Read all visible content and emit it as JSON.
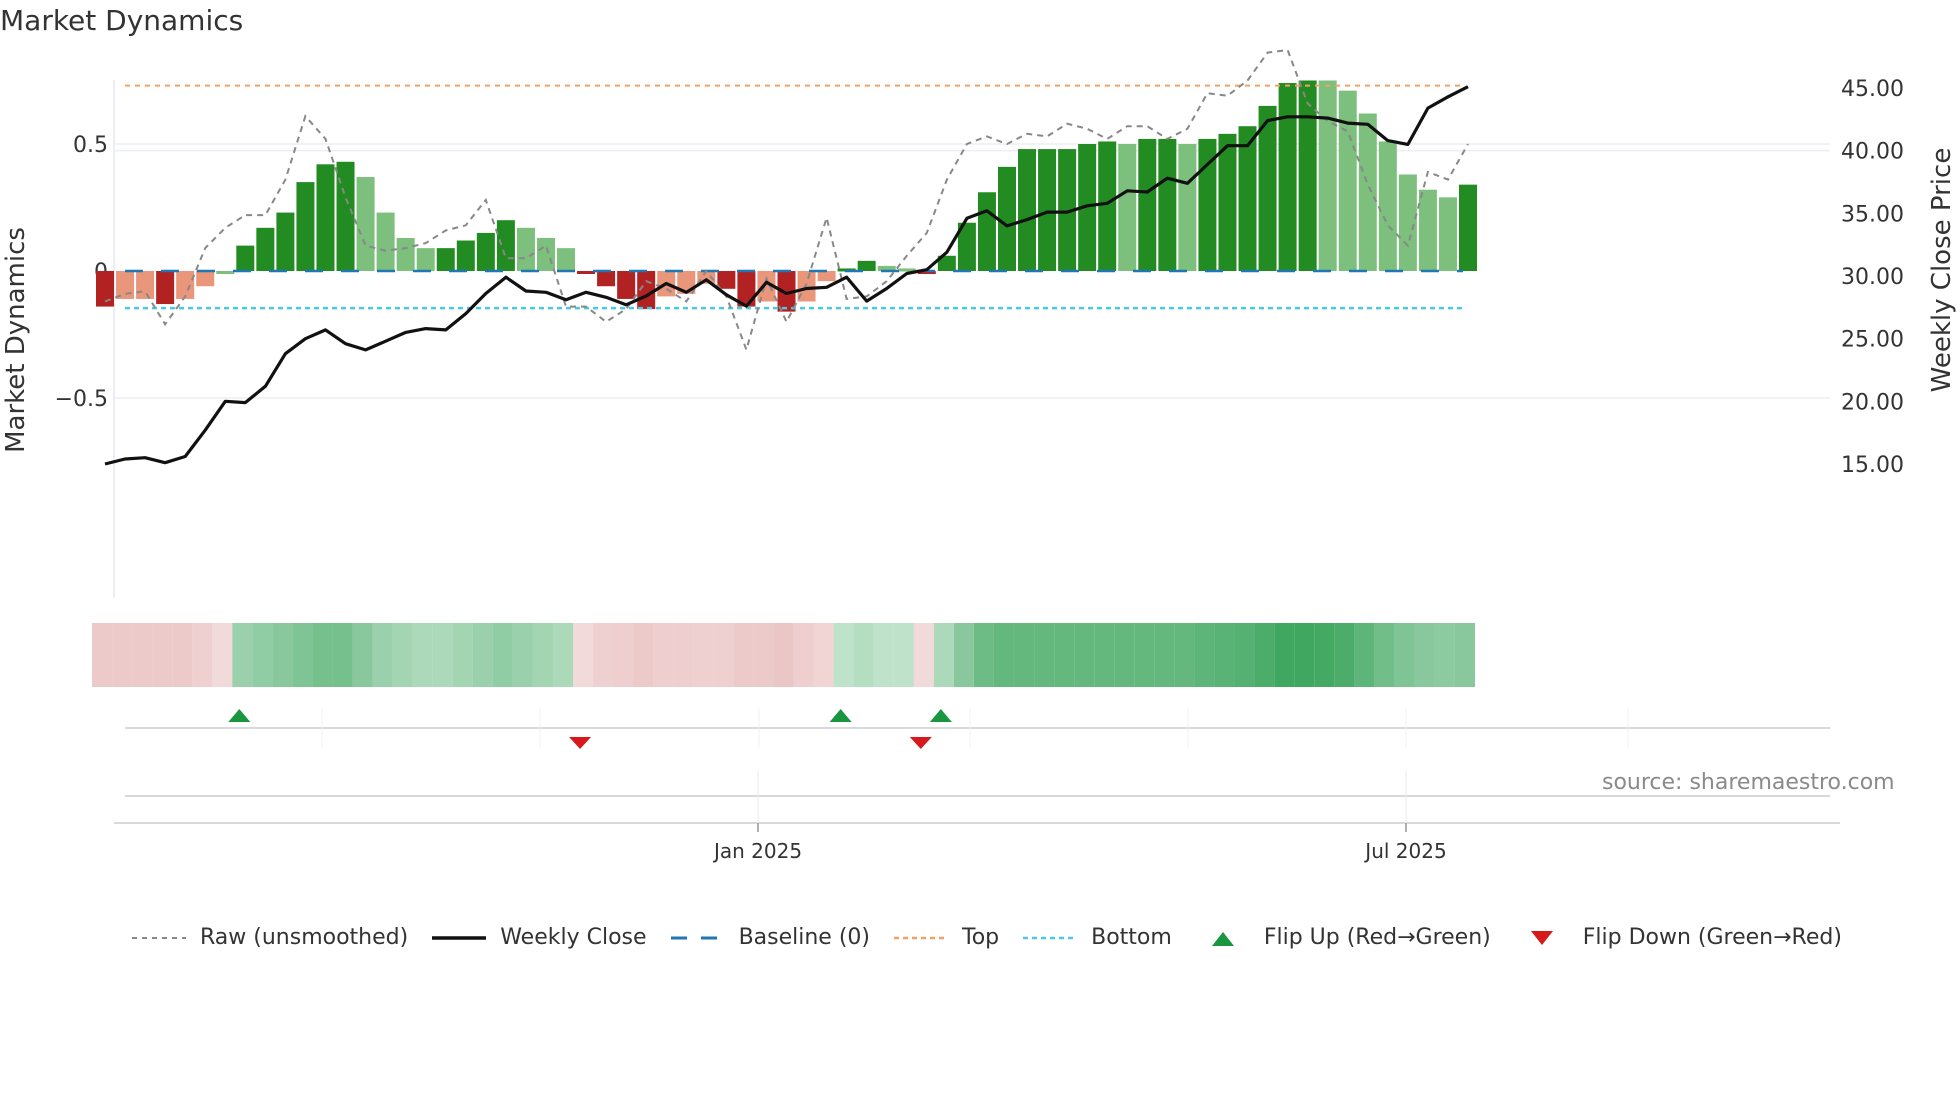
{
  "title": "Market Dynamics",
  "source": "source: sharemaestro.com",
  "axes": {
    "left_label": "Market Dynamics",
    "right_label": "Weekly Close Price",
    "left_ticks": [
      "0.5",
      "0",
      "−0.5"
    ],
    "right_ticks": [
      "45.00",
      "40.00",
      "35.00",
      "30.00",
      "25.00",
      "20.00",
      "15.00"
    ],
    "x_ticks": [
      "Jan 2025",
      "Jul 2025"
    ]
  },
  "legend": [
    {
      "key": "raw",
      "label": "Raw (unsmoothed)"
    },
    {
      "key": "close",
      "label": "Weekly Close"
    },
    {
      "key": "baseline",
      "label": "Baseline (0)"
    },
    {
      "key": "top",
      "label": "Top"
    },
    {
      "key": "bottom",
      "label": "Bottom"
    },
    {
      "key": "flipup",
      "label": "Flip Up (Red→Green)"
    },
    {
      "key": "flipdown",
      "label": "Flip Down (Green→Red)"
    }
  ],
  "colors": {
    "strong_green": "#228b22",
    "weak_green": "#7dbf7d",
    "strong_red": "#b22222",
    "weak_red": "#e9967a",
    "top_line": "#f4a261",
    "bottom_line": "#48cae4",
    "baseline": "#1f77b4",
    "raw_line": "#888888",
    "close_line": "#111111",
    "flip_up": "#1a9641",
    "flip_down": "#d7191c"
  },
  "chart_data": {
    "type": "bar",
    "title": "Market Dynamics",
    "xlabel": "",
    "ylabel": "Market Dynamics",
    "y2label": "Weekly Close Price",
    "ylim": [
      -0.82,
      0.82
    ],
    "y2lim": [
      13.8,
      46.9
    ],
    "top_level": 0.73,
    "bottom_level": -0.15,
    "baseline": 0,
    "x_tick_labels": [
      "Jan 2025",
      "Jul 2025"
    ],
    "n_weeks": 69,
    "series": [
      {
        "name": "Market Dynamics (smoothed)",
        "type": "bar",
        "values": [
          -0.14,
          -0.11,
          -0.11,
          -0.13,
          -0.11,
          -0.06,
          0,
          0.1,
          0.17,
          0.23,
          0.35,
          0.42,
          0.43,
          0.37,
          0.23,
          0.13,
          0.09,
          0.09,
          0.12,
          0.15,
          0.2,
          0.17,
          0.13,
          0.09,
          -0.01,
          -0.06,
          -0.11,
          -0.15,
          -0.1,
          -0.09,
          -0.05,
          -0.07,
          -0.14,
          -0.12,
          -0.16,
          -0.12,
          -0.04,
          0.01,
          0.04,
          0.02,
          0.01,
          -0.01,
          0.06,
          0.19,
          0.31,
          0.41,
          0.48,
          0.48,
          0.48,
          0.5,
          0.51,
          0.5,
          0.52,
          0.52,
          0.5,
          0.52,
          0.54,
          0.57,
          0.65,
          0.74,
          0.75,
          0.75,
          0.71,
          0.62,
          0.51,
          0.38,
          0.32,
          0.29,
          0.34
        ],
        "strength": [
          "s",
          "w",
          "w",
          "s",
          "w",
          "w",
          "w",
          "s",
          "s",
          "s",
          "s",
          "s",
          "s",
          "w",
          "w",
          "w",
          "w",
          "s",
          "s",
          "s",
          "s",
          "w",
          "w",
          "w",
          "s",
          "s",
          "s",
          "s",
          "w",
          "w",
          "w",
          "s",
          "s",
          "w",
          "s",
          "w",
          "w",
          "s",
          "s",
          "w",
          "w",
          "s",
          "s",
          "s",
          "s",
          "s",
          "s",
          "s",
          "s",
          "s",
          "s",
          "w",
          "s",
          "s",
          "w",
          "s",
          "s",
          "s",
          "s",
          "s",
          "s",
          "w",
          "w",
          "w",
          "w",
          "w",
          "w",
          "w",
          "s"
        ]
      },
      {
        "name": "Raw (unsmoothed)",
        "type": "line",
        "values": [
          -0.12,
          -0.09,
          -0.08,
          -0.21,
          -0.1,
          0.09,
          0.17,
          0.22,
          0.22,
          0.36,
          0.61,
          0.52,
          0.29,
          0.1,
          0.08,
          0.09,
          0.11,
          0.16,
          0.18,
          0.28,
          0.05,
          0.05,
          0.1,
          -0.14,
          -0.14,
          -0.2,
          -0.15,
          -0.04,
          -0.07,
          -0.12,
          0,
          -0.1,
          -0.31,
          -0.03,
          -0.2,
          -0.05,
          0.21,
          -0.11,
          -0.1,
          -0.04,
          0.06,
          0.15,
          0.36,
          0.5,
          0.53,
          0.5,
          0.54,
          0.53,
          0.58,
          0.56,
          0.52,
          0.57,
          0.57,
          0.52,
          0.56,
          0.7,
          0.69,
          0.75,
          0.86,
          0.87,
          0.66,
          0.59,
          0.55,
          0.34,
          0.18,
          0.1,
          0.39,
          0.36,
          0.5
        ]
      },
      {
        "name": "Weekly Close",
        "type": "line",
        "axis": "right",
        "values": [
          15.0,
          15.4,
          15.5,
          15.1,
          15.6,
          17.7,
          20.0,
          19.9,
          21.2,
          23.8,
          25.0,
          25.7,
          24.6,
          24.1,
          24.8,
          25.5,
          25.8,
          25.7,
          27.0,
          28.6,
          29.9,
          28.8,
          28.7,
          28.1,
          28.7,
          28.3,
          27.7,
          28.4,
          29.4,
          28.7,
          29.7,
          28.5,
          27.6,
          29.5,
          28.6,
          29.0,
          29.1,
          29.9,
          28.0,
          29.0,
          30.2,
          30.5,
          31.9,
          34.6,
          35.2,
          34.0,
          34.5,
          35.1,
          35.1,
          35.6,
          35.8,
          36.8,
          36.7,
          37.8,
          37.4,
          38.9,
          40.4,
          40.4,
          42.4,
          42.7,
          42.7,
          42.6,
          42.2,
          42.1,
          40.8,
          40.5,
          43.4,
          44.3,
          45.1
        ]
      },
      {
        "name": "Market tone strip",
        "type": "heatmap",
        "values": [
          -0.4,
          -0.4,
          -0.4,
          -0.4,
          -0.4,
          -0.3,
          -0.2,
          0.4,
          0.45,
          0.5,
          0.55,
          0.6,
          0.6,
          0.5,
          0.4,
          0.35,
          0.3,
          0.3,
          0.35,
          0.4,
          0.45,
          0.4,
          0.35,
          0.3,
          -0.2,
          -0.3,
          -0.35,
          -0.4,
          -0.35,
          -0.35,
          -0.3,
          -0.3,
          -0.4,
          -0.4,
          -0.45,
          -0.35,
          -0.25,
          0.2,
          0.25,
          0.2,
          0.2,
          -0.2,
          0.3,
          0.5,
          0.65,
          0.7,
          0.7,
          0.7,
          0.7,
          0.7,
          0.7,
          0.7,
          0.7,
          0.7,
          0.7,
          0.72,
          0.75,
          0.78,
          0.82,
          0.9,
          0.9,
          0.88,
          0.82,
          0.72,
          0.62,
          0.55,
          0.5,
          0.48,
          0.5
        ]
      }
    ],
    "flips": [
      {
        "type": "up",
        "week_index": 7
      },
      {
        "type": "down",
        "week_index": 24
      },
      {
        "type": "up",
        "week_index": 37
      },
      {
        "type": "down",
        "week_index": 41
      },
      {
        "type": "up",
        "week_index": 42
      }
    ]
  }
}
